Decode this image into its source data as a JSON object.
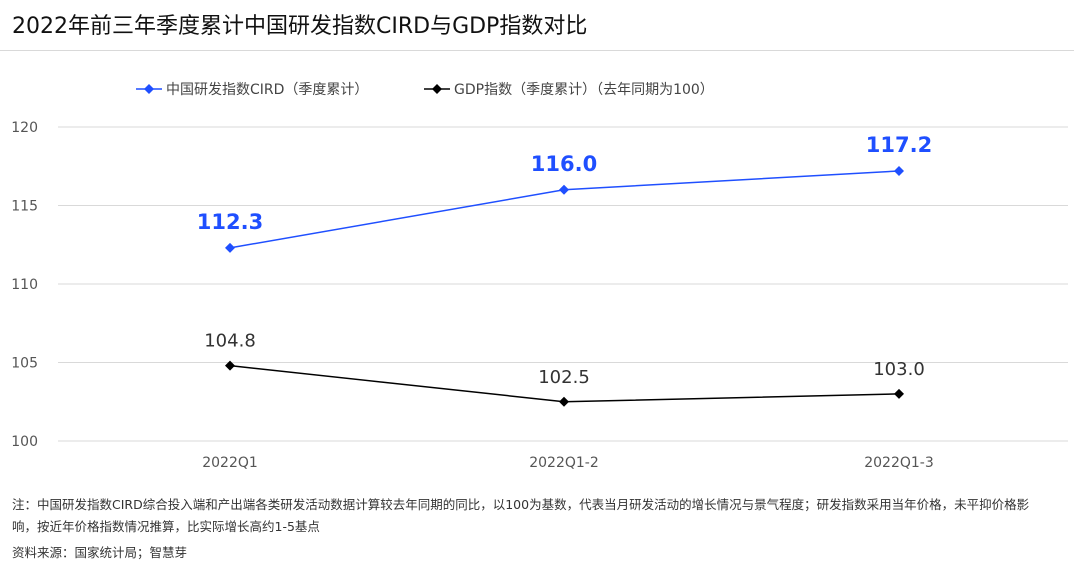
{
  "title": "2022年前三年季度累计中国研发指数CIRD与GDP指数对比",
  "note": "注：中国研发指数CIRD综合投入端和产出端各类研发活动数据计算较去年同期的同比，以100为基数，代表当月研发活动的增长情况与景气程度；研发指数采用当年价格，未平抑价格影响，按近年价格指数情况推算，比实际增长高约1-5基点",
  "source": "资料来源：国家统计局；智慧芽",
  "chart_data": {
    "type": "line",
    "categories": [
      "2022Q1",
      "2022Q1-2",
      "2022Q1-3"
    ],
    "ylim": [
      100,
      120
    ],
    "yticks": [
      100,
      105,
      110,
      115,
      120
    ],
    "grid": true,
    "legend_position": "top-left",
    "series": [
      {
        "name": "中国研发指数CIRD（季度累计）",
        "values": [
          112.3,
          116.0,
          117.2
        ],
        "labels": [
          "112.3",
          "116.0",
          "117.2"
        ],
        "color": "#1f4fff",
        "label_color": "#1f4fff",
        "label_weight": "bold",
        "label_size": 21
      },
      {
        "name": "GDP指数（季度累计）（去年同期为100）",
        "values": [
          104.8,
          102.5,
          103.0
        ],
        "labels": [
          "104.8",
          "102.5",
          "103.0"
        ],
        "color": "#000000",
        "label_color": "#333333",
        "label_weight": "normal",
        "label_size": 18
      }
    ]
  }
}
